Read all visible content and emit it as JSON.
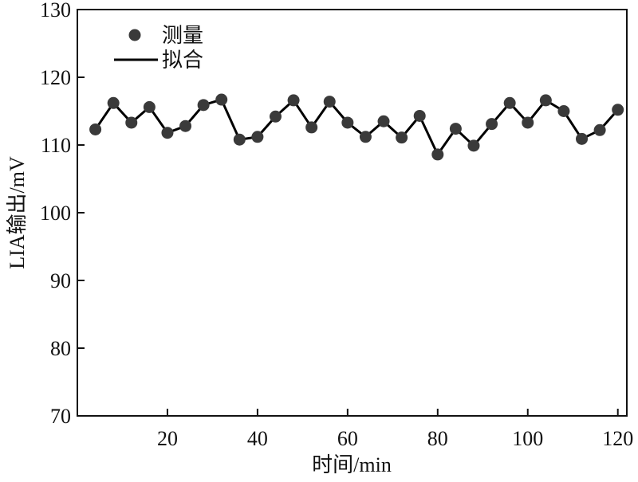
{
  "chart_data": {
    "type": "line",
    "title": "",
    "xlabel": "时间/min",
    "ylabel": "LIA输出/mV",
    "xlim": [
      0,
      122
    ],
    "ylim": [
      70,
      130
    ],
    "xticks": [
      20,
      40,
      60,
      80,
      100,
      120
    ],
    "yticks": [
      70,
      80,
      90,
      100,
      110,
      120,
      130
    ],
    "grid": false,
    "legend_position": "top-left",
    "series": [
      {
        "name": "测量",
        "kind": "scatter",
        "marker": "circle",
        "color": "#3a3a3a",
        "x": [
          4,
          8,
          12,
          16,
          20,
          24,
          28,
          32,
          36,
          40,
          44,
          48,
          52,
          56,
          60,
          64,
          68,
          72,
          76,
          80,
          84,
          88,
          92,
          96,
          100,
          104,
          108,
          112,
          116,
          120
        ],
        "y": [
          112.3,
          116.2,
          113.3,
          115.6,
          111.8,
          112.8,
          115.9,
          116.7,
          110.8,
          111.2,
          114.2,
          116.6,
          112.6,
          116.4,
          113.3,
          111.2,
          113.5,
          111.1,
          114.3,
          108.6,
          112.4,
          109.9,
          113.1,
          116.2,
          113.3,
          116.6,
          115.0,
          110.9,
          112.2,
          115.2
        ]
      },
      {
        "name": "拟合",
        "kind": "line",
        "color": "#000000",
        "x": [
          4,
          8,
          12,
          16,
          20,
          24,
          28,
          32,
          36,
          40,
          44,
          48,
          52,
          56,
          60,
          64,
          68,
          72,
          76,
          80,
          84,
          88,
          92,
          96,
          100,
          104,
          108,
          112,
          116,
          120
        ],
        "y": [
          112.3,
          116.2,
          113.3,
          115.6,
          111.8,
          112.8,
          115.9,
          116.7,
          110.8,
          111.2,
          114.2,
          116.6,
          112.6,
          116.4,
          113.3,
          111.2,
          113.5,
          111.1,
          114.3,
          108.6,
          112.4,
          109.9,
          113.1,
          116.2,
          113.3,
          116.6,
          115.0,
          110.9,
          112.2,
          115.2
        ]
      }
    ]
  }
}
